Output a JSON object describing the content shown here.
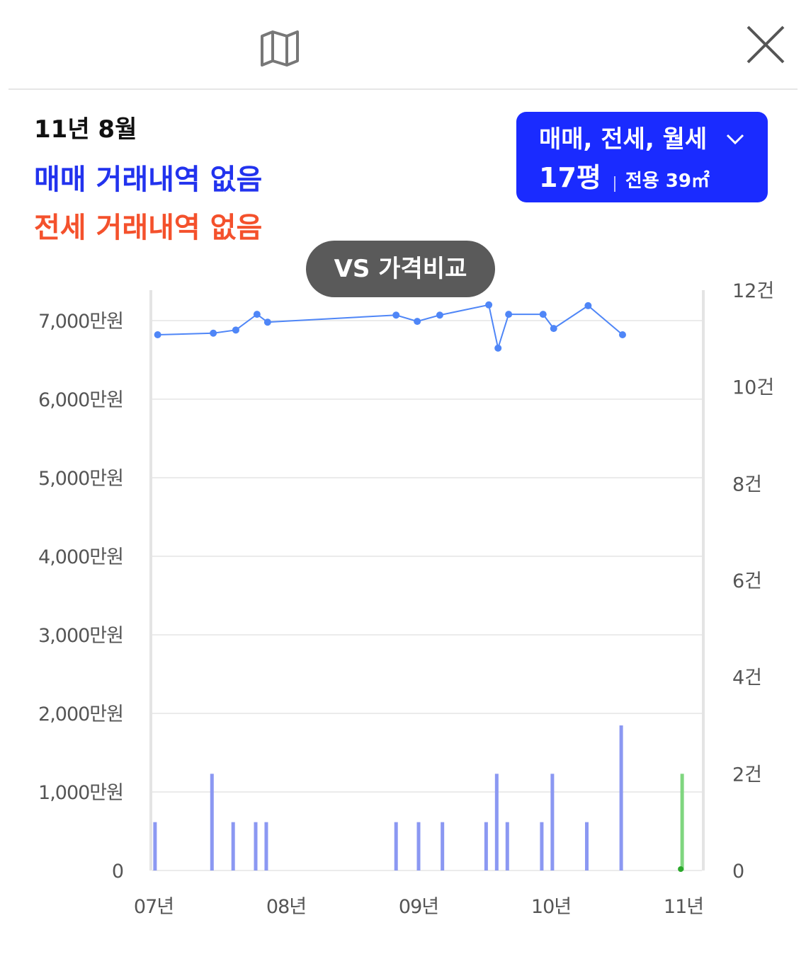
{
  "header": {
    "map_icon": "map-icon",
    "close_icon": "close-icon"
  },
  "info": {
    "date": "11년 8월",
    "sale_status": "매매 거래내역 없음",
    "jeonse_status": "전세 거래내역 없음"
  },
  "filter": {
    "types": "매매, 전세, 월세",
    "dropdown_icon": "chevron-down-icon",
    "pyeong": "17평",
    "area": "전용 39㎡"
  },
  "vs_button": "VS 가격비교",
  "colors": {
    "price_line": "#4f86f7",
    "volume_bar": "#8b98f2",
    "current_bar": "#7fd67f",
    "current_dot": "#2aa82a",
    "filter_bg": "#1a2bff",
    "sale_text": "#2233ee",
    "jeonse_text": "#f4512c"
  },
  "chart_data": {
    "type": "line+bar",
    "x_tick_labels": [
      "07년",
      "08년",
      "09년",
      "10년",
      "11년"
    ],
    "x_range": [
      2007.0,
      2011.0
    ],
    "left_axis": {
      "tick_labels": [
        "0",
        "1,000만원",
        "2,000만원",
        "3,000만원",
        "4,000만원",
        "5,000만원",
        "6,000만원",
        "7,000만원"
      ],
      "range": [
        0,
        7400
      ]
    },
    "right_axis": {
      "tick_labels": [
        "0",
        "2건",
        "4건",
        "6건",
        "8건",
        "10건",
        "12건"
      ],
      "range": [
        0,
        12
      ]
    },
    "grid": true,
    "price_series": {
      "x": [
        2007.03,
        2007.45,
        2007.62,
        2007.78,
        2007.86,
        2008.83,
        2008.99,
        2009.16,
        2009.53,
        2009.6,
        2009.68,
        2009.94,
        2010.02,
        2010.28,
        2010.54
      ],
      "y": [
        6820,
        6840,
        6880,
        7080,
        6980,
        7070,
        6990,
        7070,
        7200,
        6650,
        7080,
        7080,
        6900,
        7190,
        6820
      ]
    },
    "volume_series": {
      "x": [
        2007.01,
        2007.44,
        2007.6,
        2007.77,
        2007.85,
        2008.83,
        2009.0,
        2009.18,
        2009.51,
        2009.59,
        2009.67,
        2009.93,
        2010.01,
        2010.27,
        2010.53
      ],
      "y": [
        1,
        2,
        1,
        1,
        1,
        1,
        1,
        1,
        1,
        2,
        1,
        1,
        2,
        1,
        3
      ]
    },
    "current_volume": {
      "x": 2010.99,
      "y": 2
    }
  }
}
